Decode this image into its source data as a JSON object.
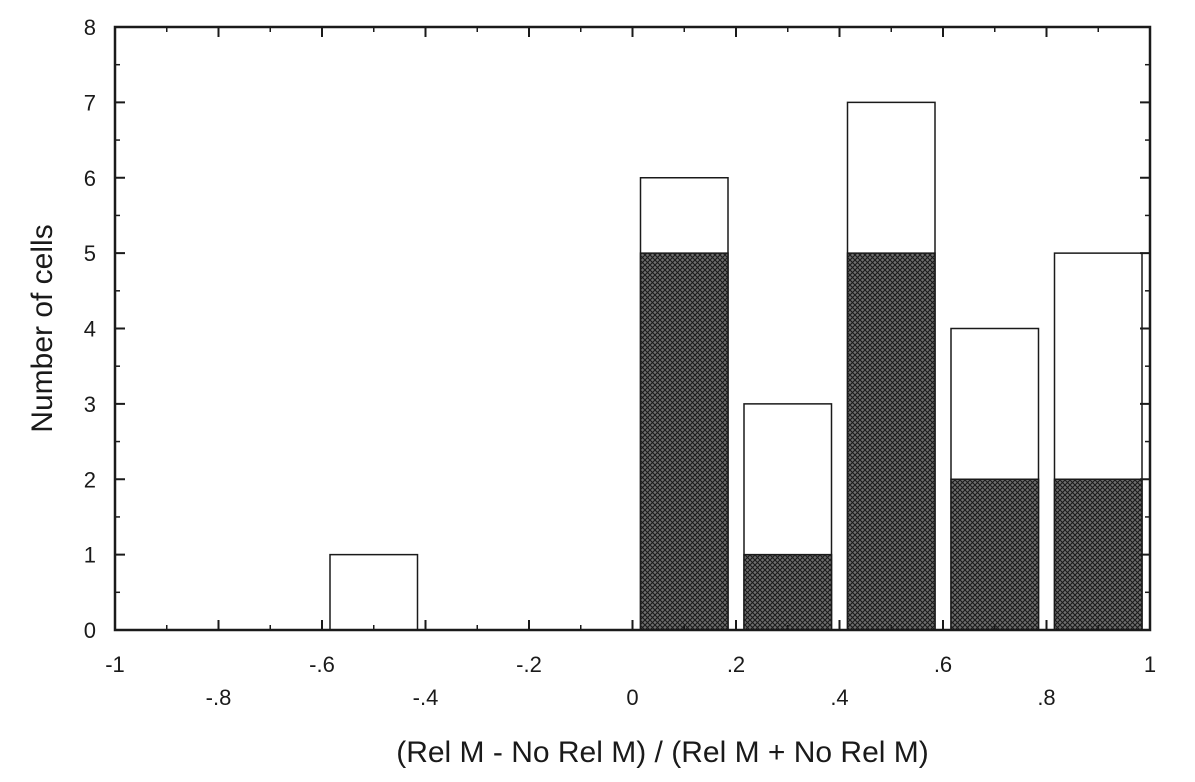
{
  "chart_data": {
    "type": "bar",
    "stacked": true,
    "title": "",
    "xlabel": "(Rel M - No Rel M) / (Rel M + No Rel M)",
    "ylabel": "Number of cells",
    "xlim": [
      -1,
      1
    ],
    "ylim": [
      0,
      8
    ],
    "x_ticks_upper": [
      "-1",
      "-.6",
      "-.2",
      ".2",
      ".6",
      "1"
    ],
    "x_ticks_lower": [
      "-.8",
      "-.4",
      "0",
      ".4",
      ".8"
    ],
    "y_ticks": [
      "0",
      "1",
      "2",
      "3",
      "4",
      "5",
      "6",
      "7",
      "8"
    ],
    "bin_width": 0.2,
    "bins": [
      {
        "x_start": -1.0,
        "x_end": -0.8,
        "filled": 0,
        "total": 0
      },
      {
        "x_start": -0.8,
        "x_end": -0.6,
        "filled": 0,
        "total": 0
      },
      {
        "x_start": -0.6,
        "x_end": -0.4,
        "filled": 0,
        "total": 1
      },
      {
        "x_start": -0.4,
        "x_end": -0.2,
        "filled": 0,
        "total": 0
      },
      {
        "x_start": -0.2,
        "x_end": 0.0,
        "filled": 0,
        "total": 0
      },
      {
        "x_start": 0.0,
        "x_end": 0.2,
        "filled": 5,
        "total": 6
      },
      {
        "x_start": 0.2,
        "x_end": 0.4,
        "filled": 1,
        "total": 3
      },
      {
        "x_start": 0.4,
        "x_end": 0.6,
        "filled": 5,
        "total": 7
      },
      {
        "x_start": 0.6,
        "x_end": 0.8,
        "filled": 2,
        "total": 4
      },
      {
        "x_start": 0.8,
        "x_end": 1.0,
        "filled": 2,
        "total": 5
      }
    ],
    "series": [
      {
        "fill": "crosshatch",
        "values": [
          0,
          0,
          0,
          0,
          0,
          5,
          1,
          5,
          2,
          2
        ]
      },
      {
        "fill": "white",
        "values": [
          0,
          0,
          1,
          0,
          0,
          1,
          2,
          2,
          2,
          3
        ]
      }
    ],
    "grid": false,
    "colors": {
      "ink": "#1a1a1a",
      "hatch_bg": "#6e6e6e",
      "hatch_line": "#1a1a1a",
      "open": "#ffffff"
    }
  }
}
